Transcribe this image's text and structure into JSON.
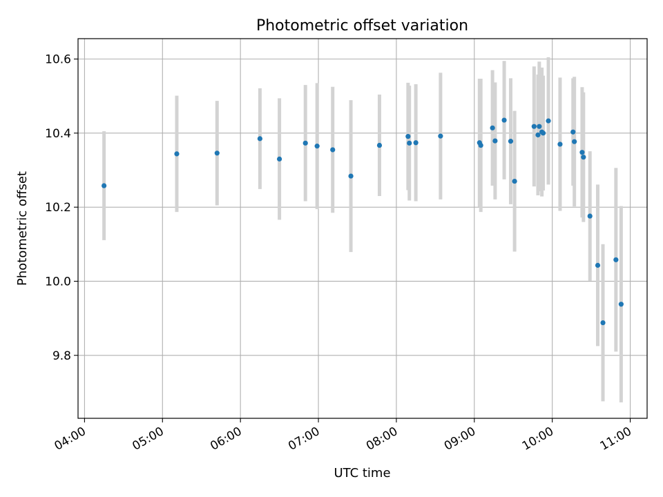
{
  "chart_data": {
    "type": "scatter",
    "title": "Photometric offset variation",
    "xlabel": "UTC time",
    "ylabel": "Photometric offset",
    "x_format": "HH:MM",
    "xlim": [
      "03:55",
      "11:13"
    ],
    "ylim": [
      9.63,
      10.655
    ],
    "x_ticks": [
      "04:00",
      "05:00",
      "06:00",
      "07:00",
      "08:00",
      "09:00",
      "10:00",
      "11:00"
    ],
    "y_ticks": [
      9.8,
      10.0,
      10.2,
      10.4,
      10.6
    ],
    "y_tick_labels": [
      "9.8",
      "10.0",
      "10.2",
      "10.4",
      "10.6"
    ],
    "grid": true,
    "point_color": "#1f77b4",
    "errorbar_color": "#d3d3d3",
    "points": [
      {
        "t": "04:15",
        "y": 10.258,
        "err": 0.147
      },
      {
        "t": "05:11",
        "y": 10.344,
        "err": 0.157
      },
      {
        "t": "05:42",
        "y": 10.346,
        "err": 0.141
      },
      {
        "t": "06:15",
        "y": 10.385,
        "err": 0.136
      },
      {
        "t": "06:30",
        "y": 10.33,
        "err": 0.164
      },
      {
        "t": "06:50",
        "y": 10.373,
        "err": 0.157
      },
      {
        "t": "06:59",
        "y": 10.365,
        "err": 0.17
      },
      {
        "t": "07:11",
        "y": 10.355,
        "err": 0.17
      },
      {
        "t": "07:25",
        "y": 10.284,
        "err": 0.205
      },
      {
        "t": "07:47",
        "y": 10.367,
        "err": 0.137
      },
      {
        "t": "08:09",
        "y": 10.391,
        "err": 0.145
      },
      {
        "t": "08:10",
        "y": 10.373,
        "err": 0.155
      },
      {
        "t": "08:15",
        "y": 10.374,
        "err": 0.158
      },
      {
        "t": "08:34",
        "y": 10.392,
        "err": 0.171
      },
      {
        "t": "09:04",
        "y": 10.374,
        "err": 0.173
      },
      {
        "t": "09:05",
        "y": 10.367,
        "err": 0.18
      },
      {
        "t": "09:14",
        "y": 10.414,
        "err": 0.156
      },
      {
        "t": "09:16",
        "y": 10.379,
        "err": 0.158
      },
      {
        "t": "09:23",
        "y": 10.435,
        "err": 0.16
      },
      {
        "t": "09:28",
        "y": 10.378,
        "err": 0.17
      },
      {
        "t": "09:31",
        "y": 10.27,
        "err": 0.19
      },
      {
        "t": "09:46",
        "y": 10.418,
        "err": 0.162
      },
      {
        "t": "09:49",
        "y": 10.395,
        "err": 0.163
      },
      {
        "t": "09:50",
        "y": 10.418,
        "err": 0.175
      },
      {
        "t": "09:52",
        "y": 10.403,
        "err": 0.174
      },
      {
        "t": "09:53",
        "y": 10.4,
        "err": 0.155
      },
      {
        "t": "09:57",
        "y": 10.433,
        "err": 0.172
      },
      {
        "t": "10:06",
        "y": 10.37,
        "err": 0.18
      },
      {
        "t": "10:16",
        "y": 10.403,
        "err": 0.145
      },
      {
        "t": "10:17",
        "y": 10.377,
        "err": 0.175
      },
      {
        "t": "10:23",
        "y": 10.348,
        "err": 0.176
      },
      {
        "t": "10:24",
        "y": 10.335,
        "err": 0.175
      },
      {
        "t": "10:29",
        "y": 10.176,
        "err": 0.175
      },
      {
        "t": "10:35",
        "y": 10.043,
        "err": 0.218
      },
      {
        "t": "10:39",
        "y": 9.888,
        "err": 0.212
      },
      {
        "t": "10:49",
        "y": 10.058,
        "err": 0.248
      },
      {
        "t": "10:53",
        "y": 9.938,
        "err": 0.265
      }
    ]
  }
}
